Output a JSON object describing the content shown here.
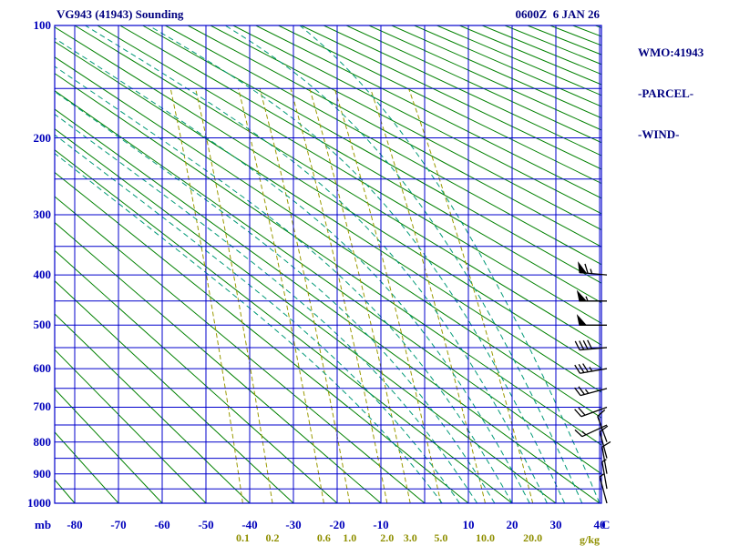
{
  "header": {
    "title": "VG943 (41943) Sounding",
    "datetime": "0600Z  6 JAN 26"
  },
  "side_panel": {
    "lines": [
      "WMO:41943",
      "-PARCEL-",
      "-WIND-"
    ]
  },
  "chart_data": {
    "type": "stuve_thermodynamic_diagram",
    "station_label": "VG943 (41943)",
    "wmo_id": "41943",
    "valid_time": "0600Z 6 JAN 26",
    "pressure_axis": {
      "unit": "mb",
      "scale": "p^0.286",
      "range_mb": [
        100,
        1000
      ],
      "major_ticks_mb": [
        100,
        200,
        300,
        400,
        500,
        600,
        700,
        800,
        900,
        1000
      ],
      "minor_step_mb": 50
    },
    "temp_axis": {
      "unit": "C",
      "range_c": [
        -85,
        40
      ],
      "isotherm_step_c": 10,
      "isotherm_min_c": -80,
      "isotherm_max_c": 40,
      "tick_labels_c": [
        -80,
        -70,
        -60,
        -50,
        -40,
        -30,
        -20,
        -10,
        10,
        20,
        30,
        40
      ]
    },
    "mixing_axis": {
      "unit": "g/kg",
      "values_gkg": [
        0.1,
        0.2,
        0.6,
        1.0,
        2.0,
        3.0,
        5.0,
        10.0,
        20.0
      ]
    },
    "dry_adiabats_theta_c": {
      "start": -80,
      "end": 330,
      "step": 10
    },
    "moist_adiabats_thetaw_c": [
      4,
      8,
      12,
      16,
      20,
      24,
      28,
      32,
      36,
      40
    ],
    "wind_barbs": [
      {
        "p_mb": 400,
        "dir_deg": 275,
        "speed_kt": 65
      },
      {
        "p_mb": 450,
        "dir_deg": 270,
        "speed_kt": 55
      },
      {
        "p_mb": 500,
        "dir_deg": 270,
        "speed_kt": 50
      },
      {
        "p_mb": 550,
        "dir_deg": 265,
        "speed_kt": 40
      },
      {
        "p_mb": 600,
        "dir_deg": 260,
        "speed_kt": 35
      },
      {
        "p_mb": 650,
        "dir_deg": 255,
        "speed_kt": 25
      },
      {
        "p_mb": 700,
        "dir_deg": 250,
        "speed_kt": 20
      },
      {
        "p_mb": 750,
        "dir_deg": 245,
        "speed_kt": 15
      },
      {
        "p_mb": 800,
        "dir_deg": 340,
        "speed_kt": 10
      },
      {
        "p_mb": 850,
        "dir_deg": 345,
        "speed_kt": 10
      },
      {
        "p_mb": 900,
        "dir_deg": 350,
        "speed_kt": 10
      },
      {
        "p_mb": 950,
        "dir_deg": 350,
        "speed_kt": 5
      },
      {
        "p_mb": 1000,
        "dir_deg": 345,
        "speed_kt": 5
      }
    ],
    "colors": {
      "grid": "#0000cc",
      "dry_adiabat": "#008000",
      "mixing_ratio": "#9a9a00",
      "moist_adiabat": "#009977",
      "axis_text": "#0000bb",
      "title_text": "#000080",
      "mixing_text": "#8f8f00",
      "barb": "#000000",
      "background": "#ffffff"
    }
  }
}
